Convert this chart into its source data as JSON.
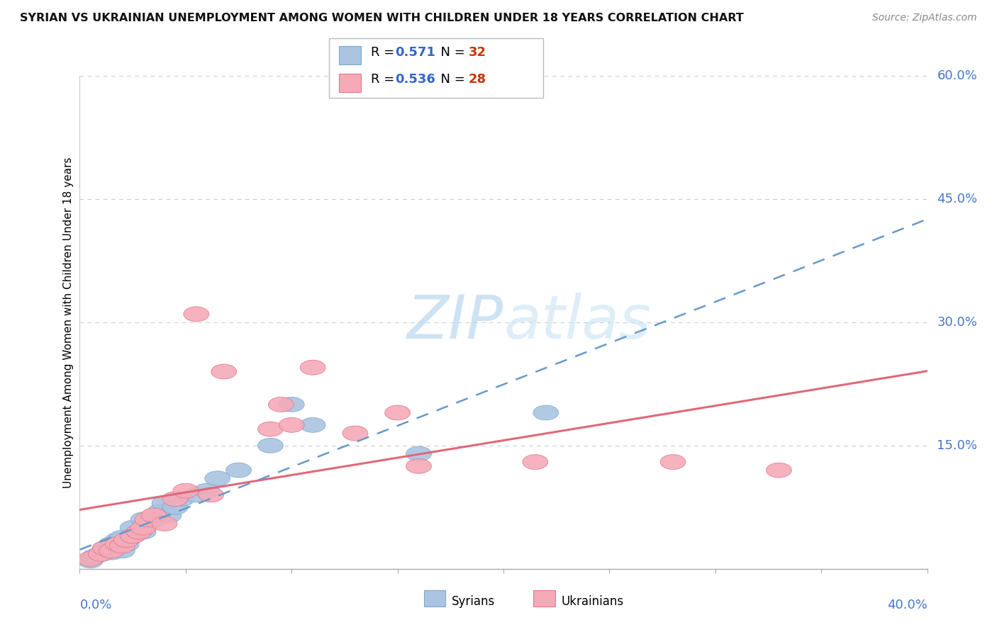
{
  "title": "SYRIAN VS UKRAINIAN UNEMPLOYMENT AMONG WOMEN WITH CHILDREN UNDER 18 YEARS CORRELATION CHART",
  "source": "Source: ZipAtlas.com",
  "ylabel": "Unemployment Among Women with Children Under 18 years",
  "xlim": [
    0.0,
    0.4
  ],
  "ylim": [
    0.0,
    0.6
  ],
  "yticks": [
    0.0,
    0.15,
    0.3,
    0.45,
    0.6
  ],
  "ytick_labels": [
    "",
    "15.0%",
    "30.0%",
    "45.0%",
    "60.0%"
  ],
  "hlines": [
    0.15,
    0.3,
    0.45,
    0.6
  ],
  "r_syrian": 0.571,
  "n_syrian": 32,
  "r_ukrainian": 0.536,
  "n_ukrainian": 28,
  "syrian_color": "#aac4e2",
  "ukrainian_color": "#f5aab8",
  "syrian_edge_color": "#7aaace",
  "ukrainian_edge_color": "#e07888",
  "syrian_line_color": "#6699cc",
  "ukrainian_line_color": "#e06878",
  "watermark_color": "#cde4f4",
  "syrians_x": [
    0.005,
    0.007,
    0.01,
    0.012,
    0.015,
    0.015,
    0.017,
    0.018,
    0.02,
    0.02,
    0.022,
    0.025,
    0.025,
    0.028,
    0.03,
    0.03,
    0.032,
    0.035,
    0.038,
    0.04,
    0.042,
    0.045,
    0.048,
    0.055,
    0.06,
    0.065,
    0.075,
    0.09,
    0.1,
    0.11,
    0.16,
    0.22
  ],
  "syrians_y": [
    0.01,
    0.015,
    0.018,
    0.025,
    0.02,
    0.03,
    0.025,
    0.035,
    0.022,
    0.038,
    0.03,
    0.04,
    0.05,
    0.045,
    0.045,
    0.06,
    0.055,
    0.06,
    0.07,
    0.08,
    0.065,
    0.075,
    0.085,
    0.09,
    0.095,
    0.11,
    0.12,
    0.15,
    0.2,
    0.175,
    0.14,
    0.19
  ],
  "ukrainians_x": [
    0.005,
    0.01,
    0.012,
    0.015,
    0.018,
    0.02,
    0.022,
    0.025,
    0.028,
    0.03,
    0.032,
    0.035,
    0.04,
    0.045,
    0.05,
    0.055,
    0.062,
    0.068,
    0.09,
    0.095,
    0.1,
    0.11,
    0.13,
    0.15,
    0.16,
    0.215,
    0.28,
    0.33
  ],
  "ukrainians_y": [
    0.012,
    0.018,
    0.025,
    0.022,
    0.03,
    0.028,
    0.035,
    0.04,
    0.045,
    0.05,
    0.06,
    0.065,
    0.055,
    0.085,
    0.095,
    0.31,
    0.09,
    0.24,
    0.17,
    0.2,
    0.175,
    0.245,
    0.165,
    0.19,
    0.125,
    0.13,
    0.13,
    0.12
  ]
}
